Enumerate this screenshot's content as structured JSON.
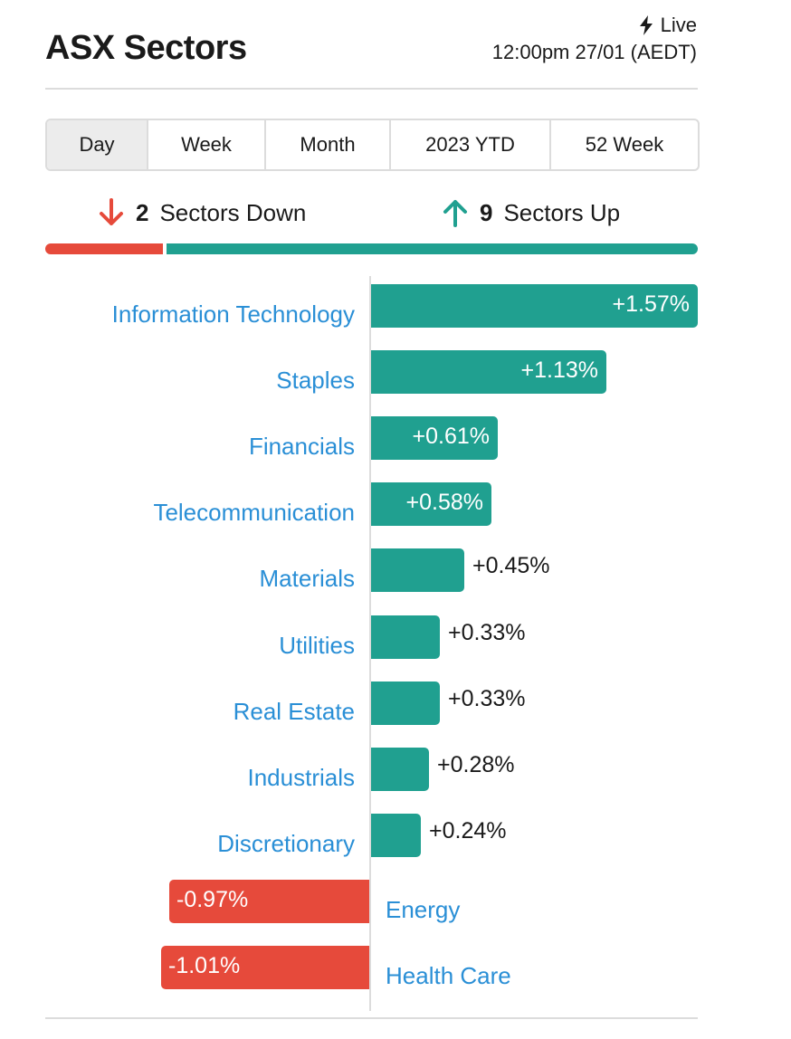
{
  "header": {
    "title": "ASX Sectors",
    "live_label": "Live",
    "timestamp": "12:00pm 27/01 (AEDT)"
  },
  "tabs": [
    "Day",
    "Week",
    "Month",
    "2023 YTD",
    "52 Week"
  ],
  "active_tab": "Day",
  "summary": {
    "down_count": "2",
    "down_label": "Sectors Down",
    "up_count": "9",
    "up_label": "Sectors Up"
  },
  "colors": {
    "up": "#20a090",
    "down": "#e64a3b",
    "label": "#2a8fd6"
  },
  "chart_data": {
    "type": "bar",
    "orientation": "horizontal",
    "unit": "%",
    "categories": [
      "Information Technology",
      "Staples",
      "Financials",
      "Telecommunication",
      "Materials",
      "Utilities",
      "Real Estate",
      "Industrials",
      "Discretionary",
      "Energy",
      "Health Care"
    ],
    "values": [
      1.57,
      1.13,
      0.61,
      0.58,
      0.45,
      0.33,
      0.33,
      0.28,
      0.24,
      -0.97,
      -1.01
    ],
    "labels": [
      "+1.57%",
      "+1.13%",
      "+0.61%",
      "+0.58%",
      "+0.45%",
      "+0.33%",
      "+0.33%",
      "+0.28%",
      "+0.24%",
      "-0.97%",
      "-1.01%"
    ]
  }
}
